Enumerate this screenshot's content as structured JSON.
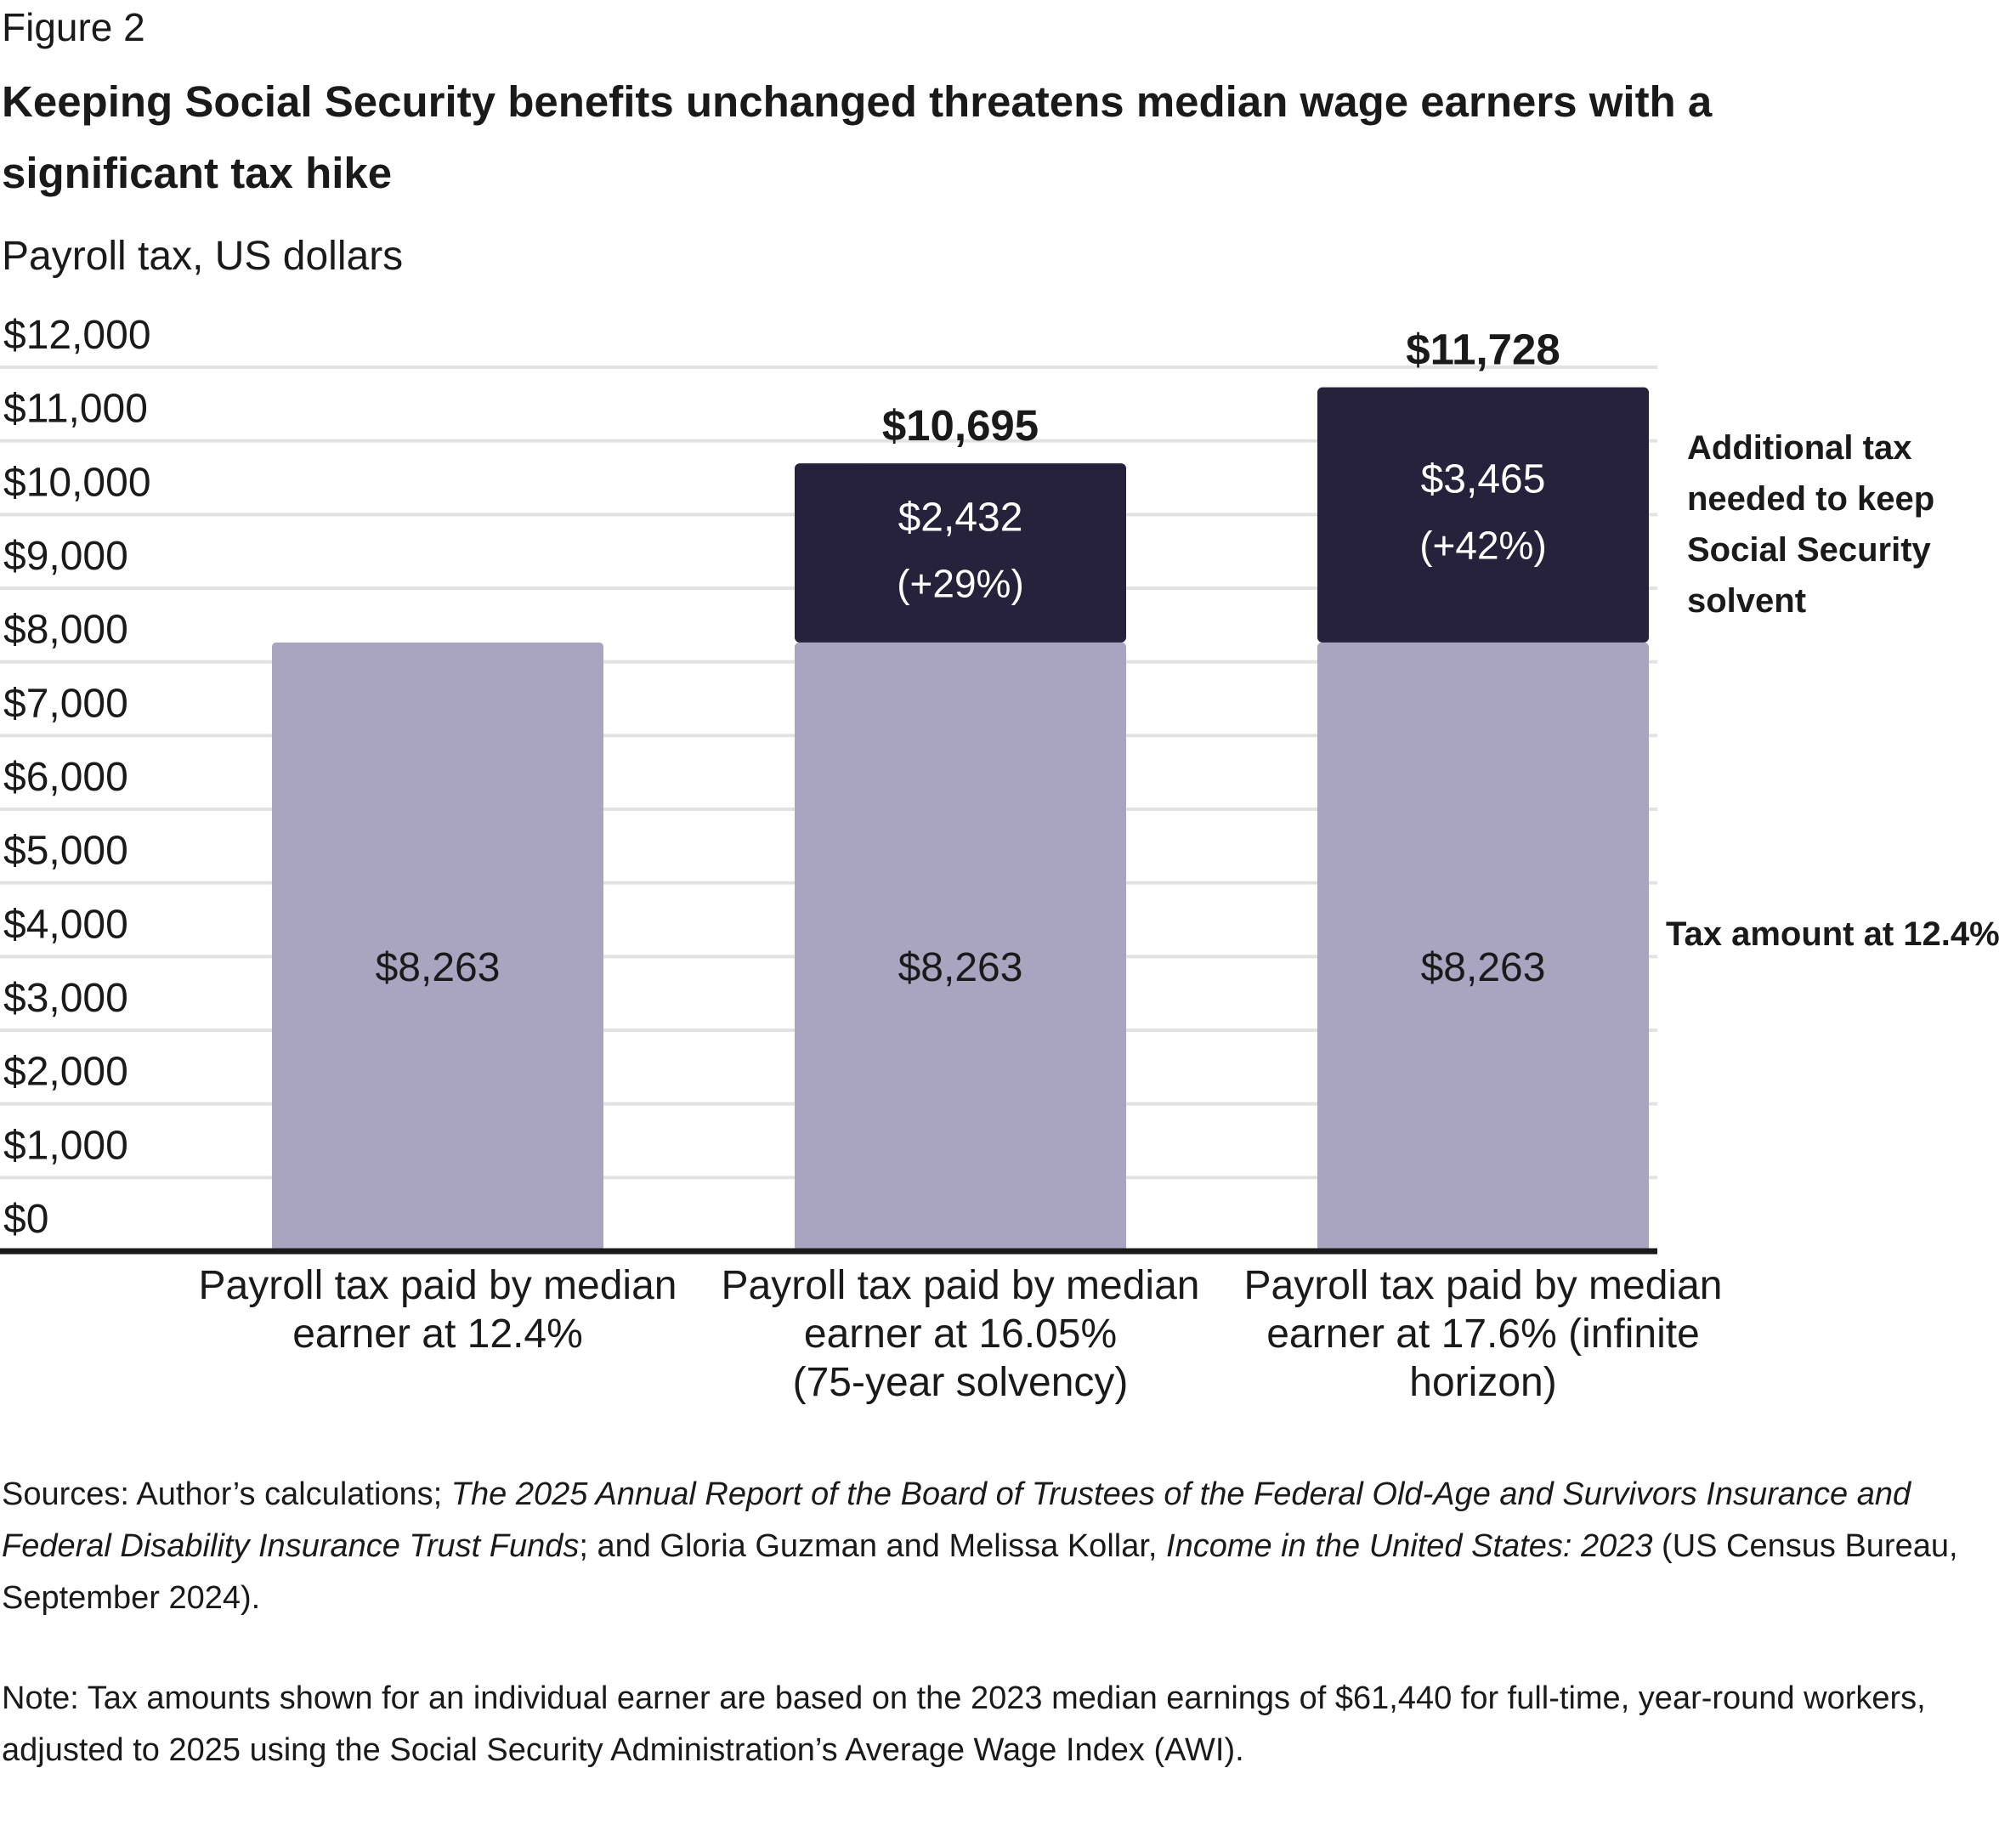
{
  "figure_label": "Figure 2",
  "title": "Keeping Social Security benefits unchanged threatens median wage earners with a significant tax hike",
  "subtitle": "Payroll tax, US dollars",
  "colors": {
    "base": "#a9a4bf",
    "additional": "#27223b",
    "grid": "#e2e2e2",
    "axis": "#1a1a1a"
  },
  "chart_data": {
    "type": "bar",
    "stacked": true,
    "categories": [
      "Payroll tax paid by median earner at 12.4%",
      "Payroll tax paid by median earner at 16.05% (75-year solvency)",
      "Payroll tax paid by median earner at 17.6% (infinite horizon)"
    ],
    "category_lines": [
      [
        "Payroll tax paid by median",
        "earner at 12.4%"
      ],
      [
        "Payroll tax paid by median",
        "earner at 16.05%",
        "(75-year solvency)"
      ],
      [
        "Payroll tax paid by median",
        "earner at 17.6% (infinite",
        "horizon)"
      ]
    ],
    "series": [
      {
        "name": "Tax amount at 12.4%",
        "values": [
          8263,
          8263,
          8263
        ],
        "labels": [
          "$8,263",
          "$8,263",
          "$8,263"
        ]
      },
      {
        "name": "Additional tax needed to keep Social Security solvent",
        "name_lines": [
          "Additional tax",
          "needed to keep",
          "Social Security",
          "solvent"
        ],
        "values": [
          0,
          2432,
          3465
        ],
        "labels": [
          "",
          "$2,432",
          "$3,465"
        ],
        "pct_labels": [
          "",
          "(+29%)",
          "(+42%)"
        ]
      }
    ],
    "totals": [
      8263,
      10695,
      11728
    ],
    "total_labels": [
      "",
      "$10,695",
      "$11,728"
    ],
    "ylim": [
      0,
      12000
    ],
    "yticks": [
      0,
      1000,
      2000,
      3000,
      4000,
      5000,
      6000,
      7000,
      8000,
      9000,
      10000,
      11000,
      12000
    ],
    "ytick_labels": [
      "$0",
      "$1,000",
      "$2,000",
      "$3,000",
      "$4,000",
      "$5,000",
      "$6,000",
      "$7,000",
      "$8,000",
      "$9,000",
      "$10,000",
      "$11,000",
      "$12,000"
    ],
    "grid": true,
    "legend": "right, as direct labels"
  },
  "sources": {
    "prefix": "Sources: Author’s calculations; ",
    "report": "The 2025 Annual Report of the Board of Trustees of the Federal Old-Age and Survivors Insurance and Federal Disability Insurance Trust Funds",
    "middle": "; and Gloria Guzman and Melissa Kollar, ",
    "census": "Income in the United States: 2023",
    "suffix": " (US Census Bureau, September 2024)."
  },
  "note": "Note: Tax amounts shown for an individual earner are based on the 2023 median earnings of $61,440 for full-time, year-round workers, adjusted to 2025 using the Social Security Administration’s Average Wage Index (AWI)."
}
